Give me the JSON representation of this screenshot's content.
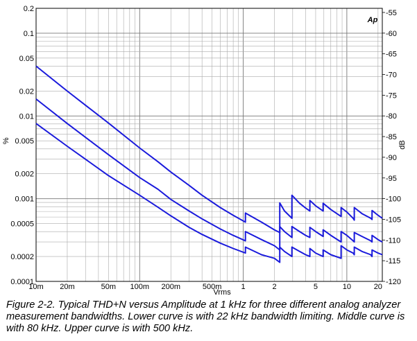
{
  "chart_data": {
    "type": "line",
    "title": "",
    "xlabel": "Vrms",
    "ylabel_left": "%",
    "ylabel_right": "dB",
    "x_scale": "log",
    "y_scale": "log",
    "xlim": [
      0.01,
      22
    ],
    "ylim_left": [
      0.0001,
      0.2
    ],
    "ylim_right": [
      -120,
      -54
    ],
    "grid": true,
    "x_ticks": [
      {
        "value": 0.01,
        "label": "10m"
      },
      {
        "value": 0.02,
        "label": "20m"
      },
      {
        "value": 0.05,
        "label": "50m"
      },
      {
        "value": 0.1,
        "label": "100m"
      },
      {
        "value": 0.2,
        "label": "200m"
      },
      {
        "value": 0.5,
        "label": "500m"
      },
      {
        "value": 1,
        "label": "1"
      },
      {
        "value": 2,
        "label": "2"
      },
      {
        "value": 5,
        "label": "5"
      },
      {
        "value": 10,
        "label": "10"
      },
      {
        "value": 20,
        "label": "20"
      }
    ],
    "y_ticks_left": [
      {
        "value": 0.2,
        "label": "0.2"
      },
      {
        "value": 0.1,
        "label": "0.1"
      },
      {
        "value": 0.05,
        "label": "0.05"
      },
      {
        "value": 0.02,
        "label": "0.02"
      },
      {
        "value": 0.01,
        "label": "0.01"
      },
      {
        "value": 0.005,
        "label": "0.005"
      },
      {
        "value": 0.002,
        "label": "0.002"
      },
      {
        "value": 0.001,
        "label": "0.001"
      },
      {
        "value": 0.0005,
        "label": "0.0005"
      },
      {
        "value": 0.0002,
        "label": "0.0002"
      },
      {
        "value": 0.0001,
        "label": "0.0001"
      }
    ],
    "y_ticks_right": [
      {
        "value": -55,
        "label": "-55"
      },
      {
        "value": -60,
        "label": "-60"
      },
      {
        "value": -65,
        "label": "-65"
      },
      {
        "value": -70,
        "label": "-70"
      },
      {
        "value": -75,
        "label": "-75"
      },
      {
        "value": -80,
        "label": "-80"
      },
      {
        "value": -85,
        "label": "-85"
      },
      {
        "value": -90,
        "label": "-90"
      },
      {
        "value": -95,
        "label": "-95"
      },
      {
        "value": -100,
        "label": "-100"
      },
      {
        "value": -105,
        "label": "-105"
      },
      {
        "value": -110,
        "label": "-110"
      },
      {
        "value": -115,
        "label": "-115"
      },
      {
        "value": -120,
        "label": "-120"
      }
    ],
    "series": [
      {
        "color": "#1a1adc",
        "x": [
          0.01,
          0.02,
          0.05,
          0.1,
          0.15,
          0.2,
          0.3,
          0.4,
          0.6,
          0.8,
          1.05,
          1.05,
          1.5,
          2.0,
          2.25,
          2.25,
          2.5,
          2.95,
          2.95,
          3.5,
          4.0,
          4.4,
          4.4,
          5.0,
          5.9,
          5.9,
          7.0,
          8.8,
          8.8,
          10.0,
          11.5,
          11.8,
          11.8,
          14.0,
          17.0,
          17.5,
          17.5,
          20.0,
          22.0
        ],
        "y": [
          0.04,
          0.02,
          0.0082,
          0.0041,
          0.0028,
          0.0021,
          0.00145,
          0.0011,
          0.00078,
          0.00063,
          0.00052,
          0.00067,
          0.00052,
          0.00042,
          0.00039,
          0.00089,
          0.00071,
          0.00058,
          0.0011,
          0.00088,
          0.00077,
          0.00071,
          0.00095,
          0.00082,
          0.00071,
          0.00088,
          0.00074,
          0.00061,
          0.00078,
          0.00069,
          0.00058,
          0.00055,
          0.00078,
          0.00066,
          0.00058,
          0.00056,
          0.00072,
          0.00063,
          0.00058
        ]
      },
      {
        "color": "#1a1adc",
        "x": [
          0.01,
          0.02,
          0.05,
          0.1,
          0.15,
          0.2,
          0.3,
          0.4,
          0.6,
          0.8,
          1.05,
          1.05,
          1.5,
          2.0,
          2.25,
          2.25,
          2.5,
          2.95,
          2.95,
          3.5,
          4.0,
          4.4,
          4.4,
          5.0,
          5.9,
          5.9,
          7.0,
          8.8,
          8.8,
          10.0,
          11.5,
          11.8,
          11.8,
          14.0,
          17.0,
          17.5,
          17.5,
          20.0,
          22.0
        ],
        "y": [
          0.016,
          0.0081,
          0.0034,
          0.0018,
          0.0013,
          0.00098,
          0.00071,
          0.00057,
          0.00043,
          0.00036,
          0.00031,
          0.0004,
          0.00032,
          0.00027,
          0.00024,
          0.00046,
          0.0004,
          0.00034,
          0.00046,
          0.0004,
          0.00036,
          0.00034,
          0.00045,
          0.0004,
          0.00035,
          0.00042,
          0.00036,
          0.0003,
          0.0004,
          0.00036,
          0.00031,
          0.0003,
          0.00039,
          0.00035,
          0.00031,
          0.0003,
          0.00036,
          0.00032,
          0.0003
        ]
      },
      {
        "color": "#1a1adc",
        "x": [
          0.01,
          0.02,
          0.05,
          0.1,
          0.15,
          0.2,
          0.3,
          0.4,
          0.6,
          0.8,
          1.05,
          1.05,
          1.5,
          2.0,
          2.25,
          2.25,
          2.5,
          2.95,
          2.95,
          3.5,
          4.0,
          4.4,
          4.4,
          5.0,
          5.9,
          5.9,
          7.0,
          8.8,
          8.8,
          10.0,
          11.5,
          11.8,
          11.8,
          14.0,
          17.0,
          17.5,
          17.5,
          20.0,
          22.0
        ],
        "y": [
          0.0081,
          0.0043,
          0.0019,
          0.0011,
          0.00079,
          0.00062,
          0.00045,
          0.00037,
          0.00029,
          0.00025,
          0.00022,
          0.00026,
          0.00021,
          0.00019,
          0.00017,
          0.00026,
          0.00023,
          0.0002,
          0.00026,
          0.00023,
          0.00021,
          0.0002,
          0.00025,
          0.00022,
          0.0002,
          0.00024,
          0.00021,
          0.00019,
          0.00027,
          0.00024,
          0.00022,
          0.00021,
          0.00026,
          0.00023,
          0.00021,
          0.0002,
          0.00024,
          0.00022,
          0.00021
        ]
      }
    ],
    "logo_text": "Ap",
    "logo_color": "#1a1adc",
    "caption": "Figure 2-2. Typical THD+N versus Amplitude at 1 kHz for three different analog analyzer measurement bandwidths.  Lower curve is with 22 kHz bandwidth limiting.  Middle curve is with 80 kHz.  Upper curve is with 500 kHz."
  }
}
